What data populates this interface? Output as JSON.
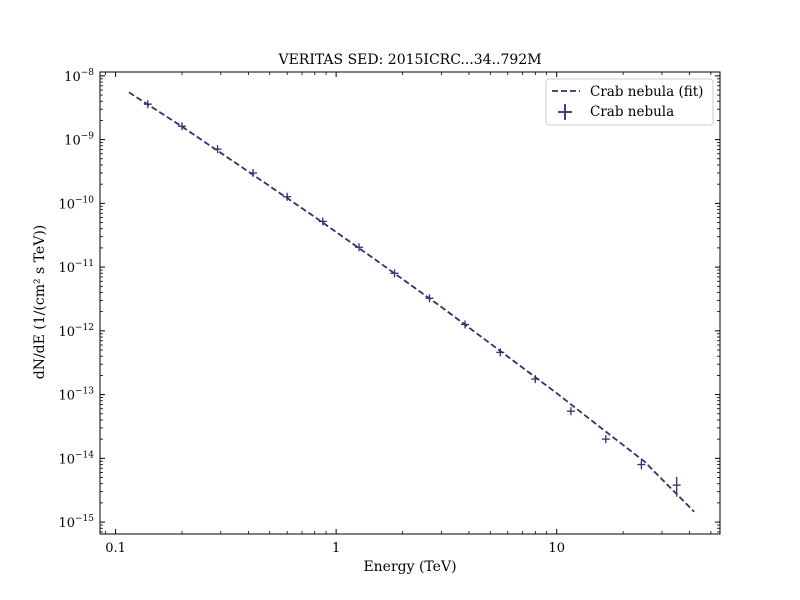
{
  "chart_data": {
    "type": "scatter",
    "title": "VERITAS SED: 2015ICRC...34..792M",
    "xlabel": "Energy (TeV)",
    "ylabel": "dN/dE (1/(cm² s TeV))",
    "x_scale": "log",
    "y_scale": "log",
    "xlim": [
      0.085,
      55
    ],
    "ylim": [
      6.5e-16,
      1.15e-08
    ],
    "grid": false,
    "legend_position": "top-right",
    "color": "#2e3270",
    "x_ticks": [
      {
        "value": 0.1,
        "label": "0.1"
      },
      {
        "value": 1,
        "label": "1"
      },
      {
        "value": 10,
        "label": "10"
      }
    ],
    "y_ticks": [
      {
        "value": 1e-15,
        "label": "10",
        "exp": "−15"
      },
      {
        "value": 1e-14,
        "label": "10",
        "exp": "−14"
      },
      {
        "value": 1e-13,
        "label": "10",
        "exp": "−13"
      },
      {
        "value": 1e-12,
        "label": "10",
        "exp": "−12"
      },
      {
        "value": 1e-11,
        "label": "10",
        "exp": "−11"
      },
      {
        "value": 1e-10,
        "label": "10",
        "exp": "−10"
      },
      {
        "value": 1e-09,
        "label": "10",
        "exp": "−9"
      },
      {
        "value": 1e-08,
        "label": "10",
        "exp": "−8"
      }
    ],
    "series": [
      {
        "name": "Crab nebula (fit)",
        "kind": "line",
        "style": "dashed",
        "x": [
          0.115,
          0.2,
          0.4,
          0.8,
          1.5,
          3,
          6,
          10,
          15,
          25,
          42
        ],
        "y": [
          5.5e-09,
          1.6e-09,
          3.15e-10,
          6.1e-11,
          1.32e-11,
          2.37e-12,
          3.95e-13,
          1.05e-13,
          3.5e-14,
          8.9e-15,
          1.45e-15
        ]
      },
      {
        "name": "Crab nebula",
        "kind": "errorbar",
        "x": [
          0.14,
          0.2,
          0.29,
          0.42,
          0.6,
          0.87,
          1.27,
          1.84,
          2.65,
          3.84,
          5.55,
          8.0,
          11.6,
          16.7,
          24.2,
          35.0
        ],
        "y": [
          3.6e-09,
          1.62e-09,
          7.1e-10,
          3e-10,
          1.27e-10,
          5.2e-11,
          2.05e-11,
          8e-12,
          3.25e-12,
          1.26e-12,
          4.6e-13,
          1.75e-13,
          5.5e-14,
          2e-14,
          8e-15,
          3.8e-15
        ],
        "yerr_low": [
          0,
          0,
          0,
          0,
          0,
          0,
          0,
          0,
          0,
          0,
          0,
          0,
          0,
          0,
          1.3e-15,
          1.3e-15
        ],
        "yerr_high": [
          0,
          0,
          0,
          0,
          0,
          0,
          0,
          0,
          0,
          0,
          0,
          0,
          0,
          0,
          1.3e-15,
          1.3e-15
        ]
      }
    ]
  }
}
